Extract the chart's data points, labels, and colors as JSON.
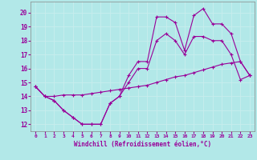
{
  "xlabel": "Windchill (Refroidissement éolien,°C)",
  "background_color": "#b2e8e8",
  "grid_color": "#c8eded",
  "line_color": "#990099",
  "hours": [
    0,
    1,
    2,
    3,
    4,
    5,
    6,
    7,
    8,
    9,
    10,
    11,
    12,
    13,
    14,
    15,
    16,
    17,
    18,
    19,
    20,
    21,
    22,
    23
  ],
  "line1": [
    14.7,
    14.0,
    13.7,
    13.0,
    12.5,
    12.0,
    12.0,
    12.0,
    13.5,
    14.0,
    15.5,
    16.5,
    16.5,
    19.7,
    19.7,
    19.3,
    17.3,
    19.8,
    20.3,
    19.2,
    19.2,
    18.5,
    16.5,
    15.5
  ],
  "line2": [
    14.7,
    14.0,
    13.7,
    13.0,
    12.5,
    12.0,
    12.0,
    12.0,
    13.5,
    14.0,
    15.0,
    16.0,
    16.0,
    18.0,
    18.5,
    18.0,
    17.0,
    18.3,
    18.3,
    18.0,
    18.0,
    17.0,
    15.2,
    15.5
  ],
  "line3": [
    14.7,
    14.0,
    14.0,
    14.1,
    14.1,
    14.1,
    14.2,
    14.3,
    14.4,
    14.5,
    14.6,
    14.7,
    14.8,
    15.0,
    15.2,
    15.4,
    15.5,
    15.7,
    15.9,
    16.1,
    16.3,
    16.4,
    16.5,
    15.5
  ],
  "yticks": [
    12,
    13,
    14,
    15,
    16,
    17,
    18,
    19,
    20
  ],
  "ylim": [
    11.5,
    20.8
  ],
  "xlim": [
    -0.5,
    23.5
  ]
}
